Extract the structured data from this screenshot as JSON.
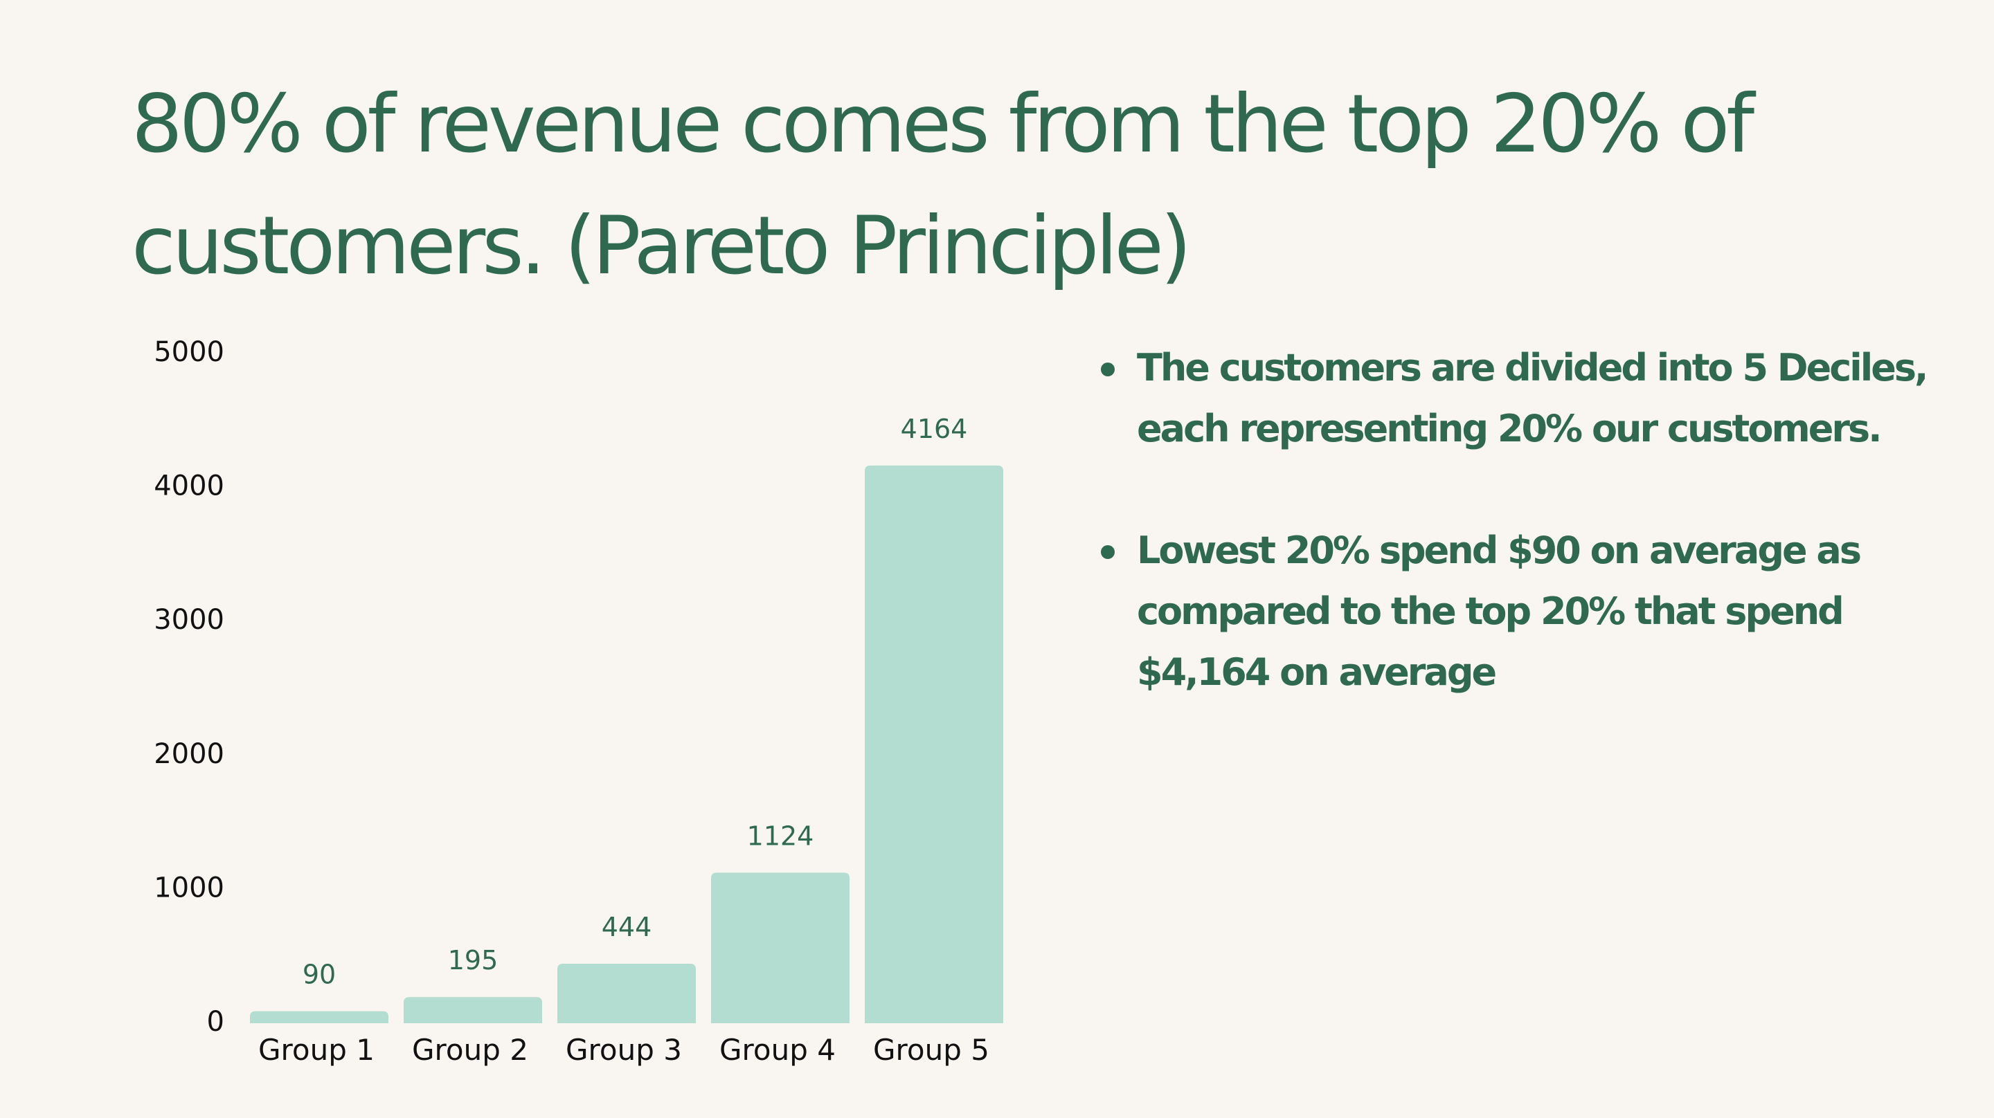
{
  "title": "80% of revenue comes from the top 20% of customers. (Pareto Principle)",
  "colors": {
    "background": "#f9f6f1",
    "bar": "#b3ddd0",
    "text_green": "#2f6a4f",
    "axis_text": "#111111"
  },
  "chart_data": {
    "type": "bar",
    "categories": [
      "Group 1",
      "Group 2",
      "Group 3",
      "Group 4",
      "Group 5"
    ],
    "values": [
      90,
      195,
      444,
      1124,
      4164
    ],
    "data_labels": [
      "90",
      "195",
      "444",
      "1124",
      "4164"
    ],
    "yticks": [
      0,
      1000,
      2000,
      3000,
      4000,
      5000
    ],
    "ylim": [
      0,
      5000
    ],
    "grid": false
  },
  "notes": [
    "The customers are divided into 5 Deciles, each representing 20% our customers.",
    "Lowest 20% spend $90 on average as compared to the top 20% that spend $4,164 on average"
  ]
}
